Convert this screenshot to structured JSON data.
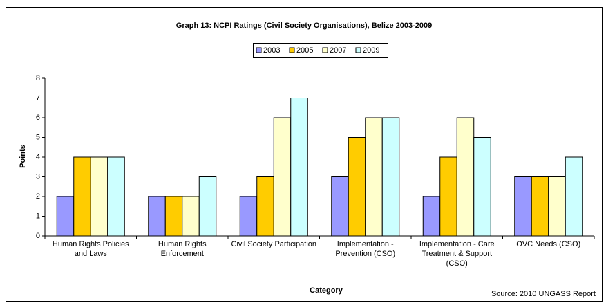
{
  "chart_data": {
    "type": "bar",
    "title": "Graph 13: NCPI Ratings (Civil Society Organisations), Belize 2003-2009",
    "x_label": "Category",
    "y_label": "Points",
    "source": "Source: 2010 UNGASS Report",
    "categories": [
      "Human Rights Policies and Laws",
      "Human Rights Enforcement",
      "Civil Society Participation",
      "Implementation - Prevention (CSO)",
      "Implementation - Care Treatment & Support (CSO)",
      "OVC Needs (CSO)"
    ],
    "series": [
      {
        "name": "2003",
        "color": "#9999ff",
        "values": [
          2,
          2,
          2,
          3,
          2,
          3
        ]
      },
      {
        "name": "2005",
        "color": "#ffcc00",
        "values": [
          4,
          2,
          3,
          5,
          4,
          3
        ]
      },
      {
        "name": "2007",
        "color": "#ffffcc",
        "values": [
          4,
          2,
          6,
          6,
          6,
          3
        ]
      },
      {
        "name": "2009",
        "color": "#ccffff",
        "values": [
          4,
          3,
          7,
          6,
          5,
          4
        ]
      }
    ],
    "ylim": [
      0,
      8
    ],
    "yticks": [
      0,
      1,
      2,
      3,
      4,
      5,
      6,
      7,
      8
    ],
    "legend": "top"
  }
}
